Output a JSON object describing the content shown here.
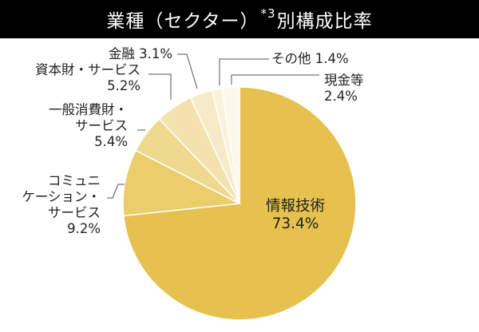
{
  "chart_data": {
    "type": "pie",
    "title": "業種（セクター）*3別構成比率",
    "title_main": "業種（セクター）",
    "title_note": "*3",
    "title_tail": "別構成比率",
    "unit": "%",
    "slices": [
      {
        "name": "情報技術",
        "value": 73.4,
        "label_lines": [
          "情報技術",
          "73.4%"
        ],
        "color": "#e6c14f"
      },
      {
        "name": "コミュニケーション・サービス",
        "value": 9.2,
        "label_lines": [
          "コミュニ",
          "ケーション・",
          "サービス",
          "9.2%"
        ],
        "color": "#ebcd6c"
      },
      {
        "name": "一般消費財・サービス",
        "value": 5.4,
        "label_lines": [
          "一般消費財・",
          "サービス",
          "5.4%"
        ],
        "color": "#efd98e"
      },
      {
        "name": "資本財・サービス",
        "value": 5.2,
        "label_lines": [
          "資本財・サービス",
          "5.2%"
        ],
        "color": "#f3e2ad"
      },
      {
        "name": "金融",
        "value": 3.1,
        "label_lines": [
          "金融 3.1%"
        ],
        "color": "#f6eac7"
      },
      {
        "name": "その他",
        "value": 1.4,
        "label_lines": [
          "その他 1.4%"
        ],
        "color": "#faf2da"
      },
      {
        "name": "現金等",
        "value": 2.4,
        "label_lines": [
          "現金等",
          "2.4%"
        ],
        "color": "#fcf7ea"
      }
    ]
  }
}
